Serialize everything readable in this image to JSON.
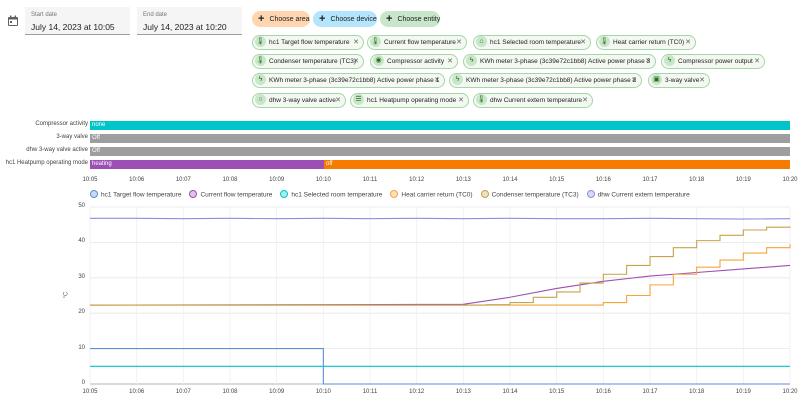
{
  "date_range": {
    "start_label": "Start date",
    "start_value": "July 14, 2023 at 10:05",
    "end_label": "End date",
    "end_value": "July 14, 2023 at 10:20"
  },
  "target_buttons": [
    {
      "label": "Choose area",
      "color": "#ffd6b0"
    },
    {
      "label": "Choose device",
      "color": "#b3e5fc"
    },
    {
      "label": "Choose entity",
      "color": "#c8e6c9"
    }
  ],
  "entity_chips": [
    {
      "label": "hc1 Target flow temperature",
      "icon": "thermometer-icon"
    },
    {
      "label": "Current flow temperature",
      "icon": "thermometer-icon"
    },
    {
      "label": "hc1 Selected room temperature",
      "icon": "home-thermometer-icon"
    },
    {
      "label": "Heat carrier return (TC0)",
      "icon": "thermometer-icon"
    },
    {
      "label": "Condenser temperature (TC3)",
      "icon": "thermometer-icon"
    },
    {
      "label": "Compressor activity",
      "icon": "eye-icon"
    },
    {
      "label": "KWh meter 3-phase (3c39e72c1bb8) Active power phase 3",
      "icon": "flash-icon"
    },
    {
      "label": "Compressor power output",
      "icon": "flash-icon"
    },
    {
      "label": "KWh meter 3-phase (3c39e72c1bb8) Active power phase 1",
      "icon": "flash-icon"
    },
    {
      "label": "KWh meter 3-phase (3c39e72c1bb8) Active power phase 2",
      "icon": "flash-icon"
    },
    {
      "label": "3-way valve",
      "icon": "valve-icon"
    },
    {
      "label": "dhw 3-way valve active",
      "icon": "circle-outline-icon"
    },
    {
      "label": "hc1 Heatpump operating mode",
      "icon": "list-icon"
    },
    {
      "label": "dhw Current extern temperature",
      "icon": "thermometer-icon"
    }
  ],
  "timeline": {
    "rows": [
      {
        "label": "Compressor activity",
        "segments": [
          {
            "text": "none",
            "start": "10:05",
            "end": "10:20",
            "color": "#00c5c8"
          }
        ]
      },
      {
        "label": "3-way valve",
        "segments": [
          {
            "text": "Off",
            "start": "10:05",
            "end": "10:20",
            "color": "#9e9e9e"
          }
        ]
      },
      {
        "label": "dhw 3-way valve active",
        "segments": [
          {
            "text": "Off",
            "start": "10:05",
            "end": "10:20",
            "color": "#9e9e9e"
          }
        ]
      },
      {
        "label": "hc1 Heatpump operating mode",
        "segments": [
          {
            "text": "heating",
            "start": "10:05",
            "end": "10:10",
            "color": "#9c4fb4"
          },
          {
            "text": "off",
            "start": "10:10",
            "end": "10:20",
            "color": "#f57c00"
          }
        ]
      }
    ],
    "x_ticks": [
      "10:05",
      "10:06",
      "10:07",
      "10:08",
      "10:09",
      "10:10",
      "10:11",
      "10:12",
      "10:13",
      "10:14",
      "10:15",
      "10:16",
      "10:17",
      "10:18",
      "10:19",
      "10:20"
    ]
  },
  "chart_data": {
    "type": "line",
    "ylabel": "°C",
    "ylim": [
      0,
      50
    ],
    "y_ticks": [
      0,
      10,
      20,
      30,
      40,
      50
    ],
    "x_ticks": [
      "10:05",
      "10:06",
      "10:07",
      "10:08",
      "10:09",
      "10:10",
      "10:11",
      "10:12",
      "10:13",
      "10:14",
      "10:15",
      "10:16",
      "10:17",
      "10:18",
      "10:19",
      "10:20"
    ],
    "grid": true,
    "legend_position": "top",
    "series": [
      {
        "name": "hc1 Target flow temperature",
        "color": "#5b8fd6",
        "step": true,
        "points": [
          [
            "10:05",
            10
          ],
          [
            "10:10",
            10
          ],
          [
            "10:10",
            0
          ],
          [
            "10:20",
            0
          ]
        ]
      },
      {
        "name": "Current flow temperature",
        "color": "#9c4fb4",
        "step": false,
        "points": [
          [
            "10:05",
            22.3
          ],
          [
            "10:10",
            22.4
          ],
          [
            "10:13",
            22.5
          ],
          [
            "10:14",
            24.5
          ],
          [
            "10:15",
            27
          ],
          [
            "10:16",
            29
          ],
          [
            "10:17",
            30.5
          ],
          [
            "10:18",
            31.5
          ],
          [
            "10:19",
            32.5
          ],
          [
            "10:20",
            33.5
          ]
        ]
      },
      {
        "name": "hc1 Selected room temperature",
        "color": "#00c5c8",
        "step": false,
        "points": [
          [
            "10:05",
            5
          ],
          [
            "10:20",
            5
          ]
        ]
      },
      {
        "name": "Heat carrier return (TC0)",
        "color": "#f5a33b",
        "step": true,
        "points": [
          [
            "10:05",
            22.3
          ],
          [
            "10:15",
            22.3
          ],
          [
            "10:16",
            23
          ],
          [
            "10:16.5",
            25
          ],
          [
            "10:17",
            28
          ],
          [
            "10:17.5",
            31
          ],
          [
            "10:18",
            33
          ],
          [
            "10:18.5",
            35
          ],
          [
            "10:19",
            37
          ],
          [
            "10:19.5",
            38.5
          ],
          [
            "10:20",
            39.5
          ]
        ]
      },
      {
        "name": "Condenser temperature (TC3)",
        "color": "#c8a24a",
        "step": true,
        "points": [
          [
            "10:05",
            22.3
          ],
          [
            "10:13.5",
            22.4
          ],
          [
            "10:14",
            23
          ],
          [
            "10:14.5",
            24.5
          ],
          [
            "10:15",
            26
          ],
          [
            "10:15.5",
            28.5
          ],
          [
            "10:16",
            31
          ],
          [
            "10:16.5",
            33.5
          ],
          [
            "10:17",
            36
          ],
          [
            "10:17.5",
            38.5
          ],
          [
            "10:18",
            40.5
          ],
          [
            "10:18.5",
            42
          ],
          [
            "10:19",
            43.5
          ],
          [
            "10:19.5",
            44.3
          ],
          [
            "10:20",
            44.5
          ]
        ]
      },
      {
        "name": "dhw Current extern temperature",
        "color": "#8a8fe0",
        "step": false,
        "points": [
          [
            "10:05",
            46.8
          ],
          [
            "10:06",
            46.8
          ],
          [
            "10:07",
            46.7
          ],
          [
            "10:08",
            46.8
          ],
          [
            "10:09",
            46.7
          ],
          [
            "10:10",
            46.8
          ],
          [
            "10:11",
            46.7
          ],
          [
            "10:12",
            46.8
          ],
          [
            "10:13",
            46.7
          ],
          [
            "10:14",
            46.8
          ],
          [
            "10:15",
            46.7
          ],
          [
            "10:16",
            46.7
          ],
          [
            "10:17",
            46.8
          ],
          [
            "10:18",
            46.7
          ],
          [
            "10:19",
            46.6
          ],
          [
            "10:20",
            46.7
          ]
        ]
      }
    ]
  }
}
